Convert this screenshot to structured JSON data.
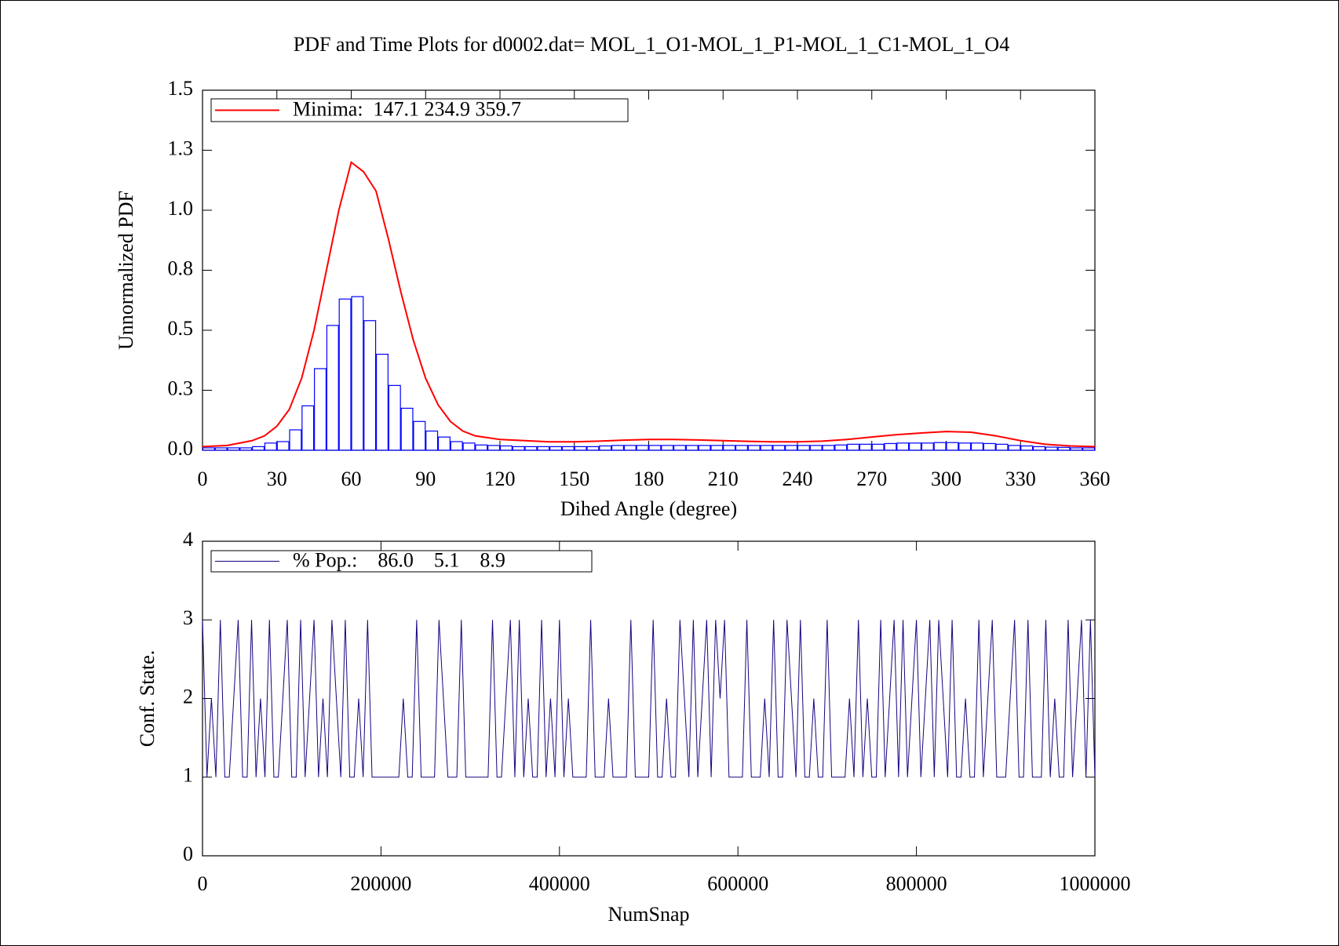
{
  "chart_data": [
    {
      "type": "histogram",
      "title": "PDF and Time Plots for d0002.dat=  MOL_1_O1-MOL_1_P1-MOL_1_C1-MOL_1_O4",
      "xlabel": "Dihed Angle (degree)",
      "ylabel": "Unnormalized PDF",
      "xlim": [
        0,
        360
      ],
      "ylim": [
        0,
        1.5
      ],
      "xticks": [
        0,
        30,
        60,
        90,
        120,
        150,
        180,
        210,
        240,
        270,
        300,
        330,
        360
      ],
      "yticks": [
        {
          "value": 0,
          "label": "0.0"
        },
        {
          "value": 0.25,
          "label": "0.3"
        },
        {
          "value": 0.5,
          "label": "0.5"
        },
        {
          "value": 0.75,
          "label": "0.8"
        },
        {
          "value": 1.0,
          "label": "1.0"
        },
        {
          "value": 1.25,
          "label": "1.3"
        },
        {
          "value": 1.5,
          "label": "1.5"
        }
      ],
      "color": "#0000ff",
      "bins": [
        0,
        5,
        10,
        15,
        20,
        25,
        30,
        35,
        40,
        45,
        50,
        55,
        60,
        65,
        70,
        75,
        80,
        85,
        90,
        95,
        100,
        105,
        110,
        115,
        120,
        125,
        130,
        135,
        140,
        145,
        150,
        155,
        160,
        165,
        170,
        175,
        180,
        185,
        190,
        195,
        200,
        205,
        210,
        215,
        220,
        225,
        230,
        235,
        240,
        245,
        250,
        255,
        260,
        265,
        270,
        275,
        280,
        285,
        290,
        295,
        300,
        305,
        310,
        315,
        320,
        325,
        330,
        335,
        340,
        345,
        350,
        355,
        360
      ],
      "values": [
        0.01,
        0.01,
        0.01,
        0.01,
        0.015,
        0.03,
        0.036,
        0.085,
        0.185,
        0.34,
        0.52,
        0.63,
        0.64,
        0.54,
        0.4,
        0.27,
        0.175,
        0.12,
        0.08,
        0.055,
        0.036,
        0.03,
        0.022,
        0.02,
        0.018,
        0.015,
        0.015,
        0.015,
        0.015,
        0.015,
        0.015,
        0.015,
        0.018,
        0.02,
        0.02,
        0.02,
        0.02,
        0.02,
        0.02,
        0.02,
        0.02,
        0.02,
        0.02,
        0.02,
        0.02,
        0.02,
        0.02,
        0.02,
        0.02,
        0.02,
        0.02,
        0.022,
        0.025,
        0.025,
        0.025,
        0.028,
        0.03,
        0.03,
        0.03,
        0.032,
        0.032,
        0.03,
        0.03,
        0.028,
        0.025,
        0.02,
        0.018,
        0.015,
        0.013,
        0.012,
        0.01,
        0.01
      ],
      "series": [
        {
          "name": "Minima:  147.1 234.9 359.7",
          "color": "#ff0000",
          "x": [
            0,
            10,
            20,
            25,
            30,
            35,
            40,
            45,
            50,
            55,
            60,
            65,
            70,
            75,
            80,
            85,
            90,
            95,
            100,
            105,
            110,
            120,
            130,
            140,
            150,
            160,
            170,
            180,
            190,
            200,
            210,
            220,
            230,
            240,
            250,
            260,
            270,
            280,
            290,
            300,
            310,
            320,
            330,
            340,
            350,
            360
          ],
          "values": [
            0.015,
            0.02,
            0.04,
            0.06,
            0.1,
            0.17,
            0.3,
            0.5,
            0.75,
            1.0,
            1.2,
            1.16,
            1.08,
            0.88,
            0.66,
            0.46,
            0.3,
            0.19,
            0.12,
            0.08,
            0.06,
            0.045,
            0.04,
            0.035,
            0.035,
            0.038,
            0.042,
            0.045,
            0.045,
            0.043,
            0.04,
            0.037,
            0.035,
            0.035,
            0.038,
            0.045,
            0.055,
            0.065,
            0.072,
            0.078,
            0.075,
            0.06,
            0.04,
            0.025,
            0.018,
            0.015
          ]
        }
      ]
    },
    {
      "type": "line",
      "xlabel": "NumSnap",
      "ylabel": "Conf. State.",
      "xlim": [
        0,
        1000000
      ],
      "ylim": [
        0,
        4
      ],
      "xticks": [
        0,
        200000,
        400000,
        600000,
        800000,
        1000000
      ],
      "yticks": [
        0,
        1,
        2,
        3,
        4
      ],
      "series": [
        {
          "name": "% Pop.:    86.0    5.1    8.9",
          "color": "#1a0080",
          "x": [
            0,
            5000,
            10000,
            15000,
            20000,
            25000,
            30000,
            35000,
            40000,
            45000,
            50000,
            55000,
            60000,
            65000,
            70000,
            75000,
            80000,
            85000,
            90000,
            95000,
            100000,
            105000,
            110000,
            115000,
            120000,
            125000,
            130000,
            135000,
            140000,
            145000,
            150000,
            155000,
            160000,
            165000,
            170000,
            175000,
            180000,
            185000,
            190000,
            195000,
            200000,
            205000,
            210000,
            215000,
            220000,
            225000,
            230000,
            235000,
            240000,
            245000,
            250000,
            255000,
            260000,
            265000,
            270000,
            275000,
            280000,
            285000,
            290000,
            295000,
            300000,
            305000,
            310000,
            315000,
            320000,
            325000,
            330000,
            335000,
            340000,
            345000,
            350000,
            355000,
            360000,
            365000,
            370000,
            375000,
            380000,
            385000,
            390000,
            395000,
            400000,
            405000,
            410000,
            415000,
            420000,
            425000,
            430000,
            435000,
            440000,
            445000,
            450000,
            455000,
            460000,
            465000,
            470000,
            475000,
            480000,
            485000,
            490000,
            495000,
            500000,
            505000,
            510000,
            515000,
            520000,
            525000,
            530000,
            535000,
            540000,
            545000,
            550000,
            555000,
            560000,
            565000,
            570000,
            575000,
            580000,
            585000,
            590000,
            595000,
            600000,
            605000,
            610000,
            615000,
            620000,
            625000,
            630000,
            635000,
            640000,
            645000,
            650000,
            655000,
            660000,
            665000,
            670000,
            675000,
            680000,
            685000,
            690000,
            695000,
            700000,
            705000,
            710000,
            715000,
            720000,
            725000,
            730000,
            735000,
            740000,
            745000,
            750000,
            755000,
            760000,
            765000,
            770000,
            775000,
            780000,
            785000,
            790000,
            795000,
            800000,
            805000,
            810000,
            815000,
            820000,
            825000,
            830000,
            835000,
            840000,
            845000,
            850000,
            855000,
            860000,
            865000,
            870000,
            875000,
            880000,
            885000,
            890000,
            895000,
            900000,
            905000,
            910000,
            915000,
            920000,
            925000,
            930000,
            935000,
            940000,
            945000,
            950000,
            955000,
            960000,
            965000,
            970000,
            975000,
            980000,
            985000,
            990000,
            995000,
            1000000
          ],
          "values": [
            3,
            1,
            2,
            1,
            3,
            1,
            1,
            2,
            3,
            1,
            1,
            3,
            1,
            2,
            1,
            3,
            1,
            1,
            2,
            3,
            1,
            1,
            3,
            1,
            2,
            3,
            1,
            2,
            1,
            3,
            2,
            1,
            3,
            1,
            1,
            2,
            1,
            3,
            1,
            1,
            1,
            1,
            1,
            1,
            1,
            2,
            1,
            1,
            3,
            1,
            1,
            1,
            1,
            3,
            2,
            1,
            1,
            1,
            3,
            1,
            1,
            1,
            1,
            1,
            1,
            3,
            1,
            1,
            2,
            3,
            1,
            3,
            1,
            2,
            1,
            1,
            3,
            1,
            2,
            1,
            3,
            1,
            2,
            1,
            1,
            1,
            1,
            3,
            1,
            1,
            1,
            2,
            1,
            1,
            1,
            1,
            3,
            1,
            1,
            1,
            1,
            3,
            1,
            1,
            2,
            1,
            1,
            3,
            2,
            1,
            3,
            1,
            2,
            3,
            1,
            3,
            2,
            3,
            1,
            1,
            1,
            1,
            3,
            1,
            1,
            1,
            2,
            1,
            3,
            1,
            1,
            3,
            2,
            1,
            3,
            1,
            1,
            2,
            1,
            1,
            3,
            1,
            1,
            1,
            1,
            2,
            1,
            3,
            1,
            2,
            1,
            1,
            3,
            1,
            2,
            3,
            1,
            3,
            1,
            2,
            3,
            1,
            2,
            3,
            1,
            3,
            2,
            1,
            3,
            1,
            1,
            2,
            1,
            1,
            3,
            1,
            2,
            3,
            1,
            1,
            1,
            2,
            3,
            1,
            1,
            3,
            1,
            1,
            1,
            3,
            1,
            2,
            1,
            1,
            3,
            1,
            2,
            3,
            1,
            3,
            1
          ]
        }
      ]
    }
  ]
}
